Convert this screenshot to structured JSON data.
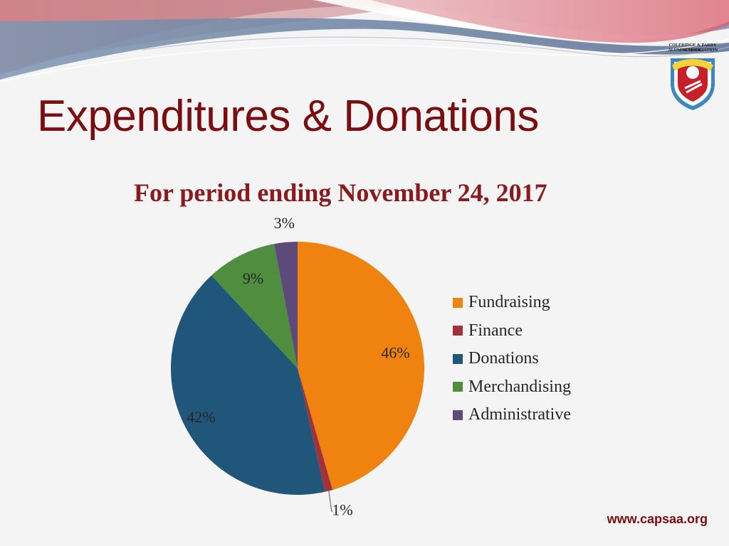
{
  "slide": {
    "title": "Expenditures & Donations",
    "website": "www.capsaa.org",
    "logo": {
      "line1": "COLERIDGE & PARRY SCHOOL",
      "line2": "ALUMNI ASSOCIATION"
    }
  },
  "chart_data": {
    "type": "pie",
    "title": "For period ending November 24, 2017",
    "categories": [
      "Fundraising",
      "Finance",
      "Donations",
      "Merchandising",
      "Administrative"
    ],
    "values": [
      46,
      1,
      42,
      9,
      3
    ],
    "labels": [
      "46%",
      "1%",
      "42%",
      "9%",
      "3%"
    ],
    "colors": [
      "#f0820f",
      "#a2323a",
      "#1f567a",
      "#4f8e3f",
      "#5d4a7a"
    ],
    "legend_position": "right"
  }
}
